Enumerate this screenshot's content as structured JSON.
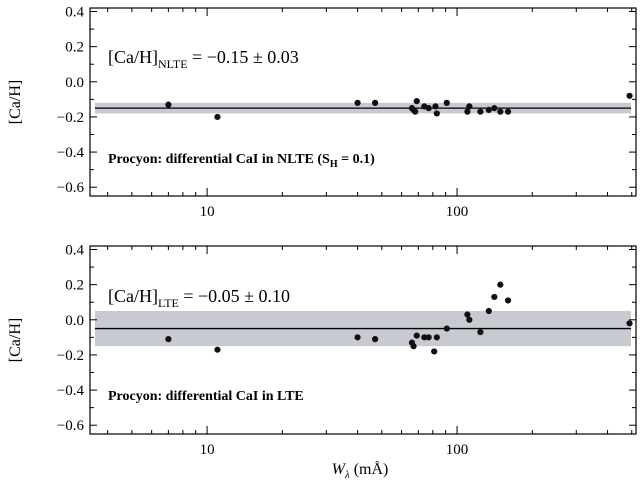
{
  "chart_data": [
    {
      "type": "scatter",
      "xlabel": "",
      "ylabel": "[Ca/H]",
      "xscale": "log",
      "xlim": [
        3.4,
        520
      ],
      "ylim": [
        -0.65,
        0.42
      ],
      "x_ticks": [
        10,
        100
      ],
      "x_tick_labels": [
        "10",
        "100"
      ],
      "y_ticks": [
        0.4,
        0.2,
        0.0,
        -0.2,
        -0.4,
        -0.6
      ],
      "y_tick_labels": [
        "0.4",
        "0.2",
        "0.0",
        "−0.2",
        "−0.4",
        "−0.6"
      ],
      "mean": -0.15,
      "band": [
        -0.18,
        -0.12
      ],
      "band_color": "#c8cad2",
      "point_color": "#111111",
      "annotation_result": {
        "main": "[Ca/H]",
        "sub": "NLTE",
        "rest": " = −0.15 ± 0.03"
      },
      "annotation_label": {
        "main": "Procyon: differential CaI in NLTE (S",
        "sub": "H",
        "rest": " = 0.1)"
      },
      "series": [
        {
          "x": [
            7.0,
            11.0,
            40,
            47,
            66,
            67,
            68,
            69,
            74,
            77,
            82,
            83,
            91,
            110,
            112,
            124,
            134,
            141,
            149,
            160,
            490
          ],
          "y": [
            -0.13,
            -0.2,
            -0.12,
            -0.12,
            -0.15,
            -0.16,
            -0.17,
            -0.11,
            -0.14,
            -0.15,
            -0.14,
            -0.18,
            -0.12,
            -0.17,
            -0.14,
            -0.17,
            -0.16,
            -0.15,
            -0.17,
            -0.17,
            -0.08
          ]
        }
      ]
    },
    {
      "type": "scatter",
      "xlabel": "W_λ (mÅ)",
      "ylabel": "[Ca/H]",
      "xscale": "log",
      "xlim": [
        3.4,
        520
      ],
      "ylim": [
        -0.65,
        0.42
      ],
      "x_ticks": [
        10,
        100
      ],
      "x_tick_labels": [
        "10",
        "100"
      ],
      "y_ticks": [
        0.4,
        0.2,
        0.0,
        -0.2,
        -0.4,
        -0.6
      ],
      "y_tick_labels": [
        "0.4",
        "0.2",
        "0.0",
        "−0.2",
        "−0.4",
        "−0.6"
      ],
      "mean": -0.05,
      "band": [
        -0.15,
        0.05
      ],
      "band_color": "#c8cad2",
      "point_color": "#111111",
      "annotation_result": {
        "main": "[Ca/H]",
        "sub": "LTE",
        "rest": " = −0.05 ± 0.10"
      },
      "annotation_label": {
        "main": "Procyon: differential CaI in LTE",
        "sub": "",
        "rest": ""
      },
      "series": [
        {
          "x": [
            7.0,
            11.0,
            40,
            47,
            66,
            67,
            69,
            74,
            77,
            81,
            83,
            91,
            110,
            112,
            124,
            134,
            141,
            149,
            160,
            490
          ],
          "y": [
            -0.11,
            -0.17,
            -0.1,
            -0.11,
            -0.13,
            -0.15,
            -0.09,
            -0.1,
            -0.1,
            -0.18,
            -0.1,
            -0.05,
            0.03,
            0.0,
            -0.07,
            0.05,
            0.13,
            0.2,
            0.11,
            -0.02
          ]
        }
      ]
    }
  ]
}
